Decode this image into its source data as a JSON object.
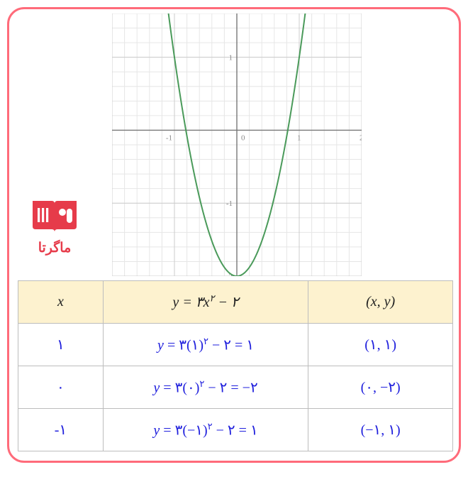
{
  "frame": {
    "border_color": "#ff6b7a",
    "radius": 24,
    "bg": "#ffffff"
  },
  "logo": {
    "text": "ماگرتا",
    "color": "#e63b4a"
  },
  "chart": {
    "type": "parabola",
    "equation": "y = 3x^2 - 2",
    "xlim": [
      -2,
      2
    ],
    "ylim": [
      -2,
      1.6
    ],
    "xticks": [
      -2,
      -1,
      0,
      1,
      2
    ],
    "yticks": [
      -2,
      -1,
      0,
      1
    ],
    "grid_minor_step": 0.2,
    "grid_color": "#e6e6e6",
    "grid_major_color": "#cccccc",
    "axis_color": "#777777",
    "curve_color": "#4a9a5a",
    "curve_width": 2,
    "background_color": "#ffffff",
    "tick_font_color": "#888888",
    "tick_font_size": 11,
    "vertex": [
      0,
      -2
    ],
    "coef_a": 3
  },
  "table": {
    "header_bg": "#fdf2cf",
    "header_fg": "#222222",
    "cell_bg": "#ffffff",
    "cell_fg": "#2020dd",
    "border_color": "#bdbdbd",
    "columns": [
      {
        "key": "x",
        "label_html": "x"
      },
      {
        "key": "y",
        "label_html": "y = ۳x² − ۲"
      },
      {
        "key": "xy",
        "label_html": "(x, y)"
      }
    ],
    "rows": [
      {
        "x": "۱",
        "y_html": "y = ۳(۱)² − ۲ = ۱",
        "xy": "(۱, ۱)"
      },
      {
        "x": "۰",
        "y_html": "y = ۳(۰)² − ۲ = −۲",
        "xy": "(۰, −۲)"
      },
      {
        "x": "-۱",
        "y_html": "y = ۳(−۱)² − ۲ = ۱",
        "xy": "(−۱, ۱)"
      }
    ]
  }
}
